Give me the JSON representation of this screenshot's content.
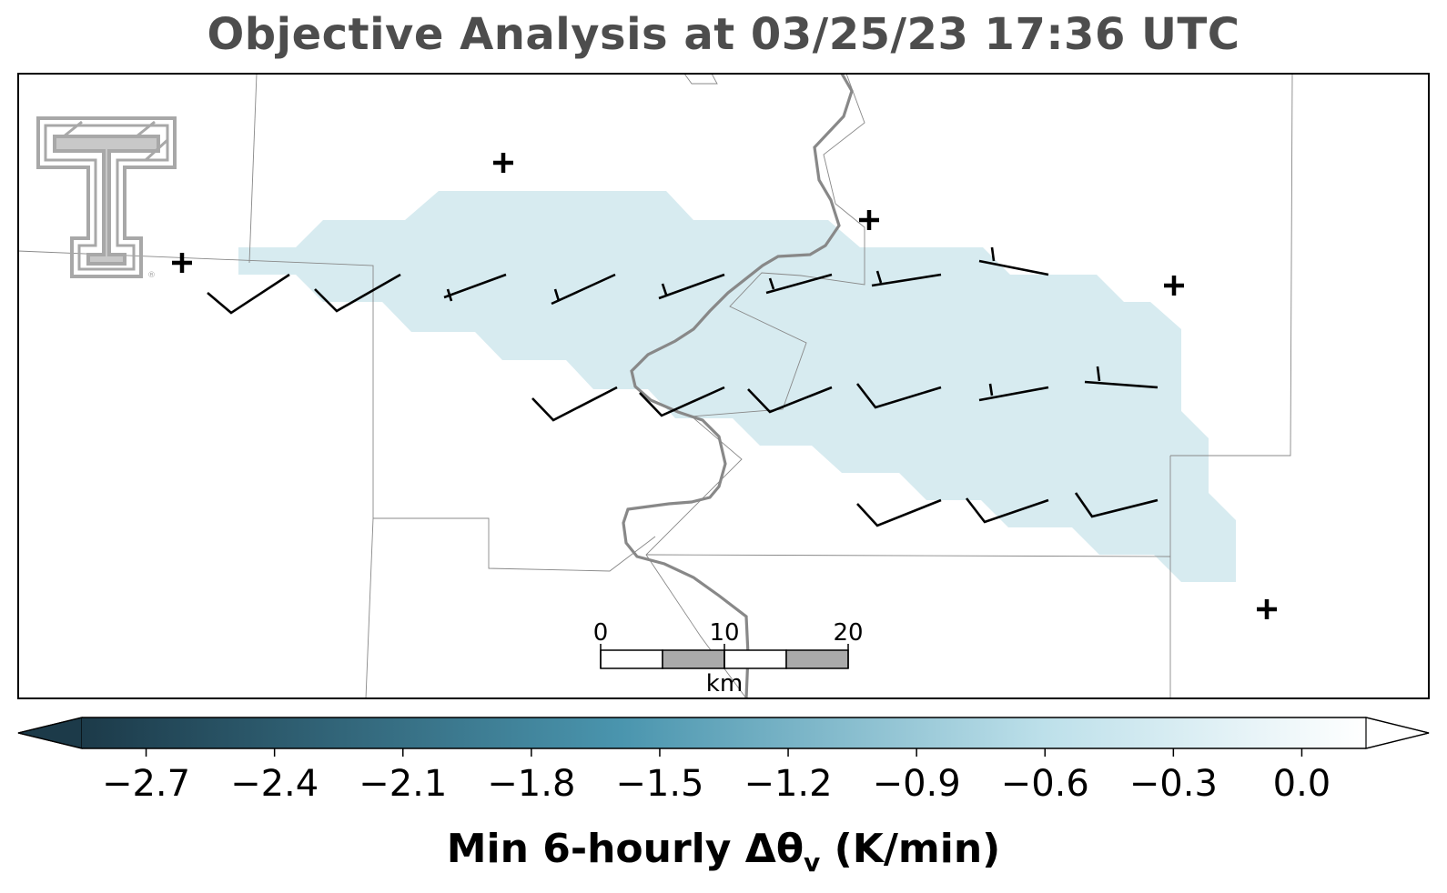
{
  "title": "Objective Analysis at 03/25/23 17:36 UTC",
  "colorbar": {
    "label_main": "Min 6-hourly Δθ",
    "label_sub": "v",
    "label_unit": " (K/min)",
    "ticks": [
      "−2.7",
      "−2.4",
      "−2.1",
      "−1.8",
      "−1.5",
      "−1.2",
      "−0.9",
      "−0.6",
      "−0.3",
      "0.0"
    ],
    "tick_values": [
      -2.7,
      -2.4,
      -2.1,
      -1.8,
      -1.5,
      -1.2,
      -0.9,
      -0.6,
      -0.3,
      0.0
    ],
    "range": [
      -2.85,
      0.15
    ],
    "extend": "both",
    "colormap": {
      "dark": "#1c3a49",
      "mid": "#4a95ae",
      "light": "#bde0ea",
      "white": "#ffffff"
    }
  },
  "scale_bar": {
    "ticks": [
      "0",
      "10",
      "20"
    ],
    "unit": "km",
    "colors": [
      "#ffffff",
      "#aaaaaa"
    ]
  },
  "map": {
    "shading_color": "#d7ebf0",
    "river_color": "#888888",
    "boundary_color": "#888888",
    "station_marker": "+",
    "logo": "texas-tech-double-t-logo"
  }
}
